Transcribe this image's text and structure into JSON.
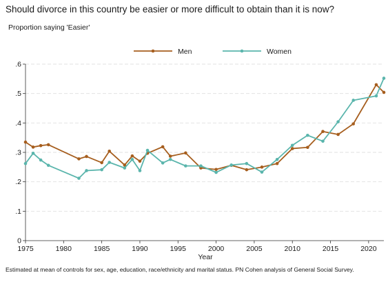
{
  "chart_data": {
    "type": "line",
    "title": "Should divorce in this country be easier or more difficult to obtain than it is now?",
    "subtitle": "Proportion saying 'Easier'",
    "xlabel": "Year",
    "ylabel": "",
    "xlim": [
      1975,
      2022
    ],
    "ylim": [
      0,
      0.6
    ],
    "x_ticks": [
      1975,
      1980,
      1985,
      1990,
      1995,
      2000,
      2005,
      2010,
      2015,
      2020
    ],
    "x_tick_labels": [
      "1975",
      "1980",
      "1985",
      "1990",
      "1995",
      "2000",
      "2005",
      "2010",
      "2015",
      "2020"
    ],
    "y_ticks": [
      0,
      0.1,
      0.2,
      0.3,
      0.4,
      0.5,
      0.6
    ],
    "y_tick_labels": [
      "0",
      ".1",
      ".2",
      ".3",
      ".4",
      ".5",
      ".6"
    ],
    "grid": true,
    "legend_position": "top-center",
    "note": "Estimated at mean of controls for sex, age, education, race/ethnicity and marital status. PN Cohen analysis of General Social Survey.",
    "series": [
      {
        "name": "Men",
        "color": "#a65e1e",
        "points": [
          [
            1975,
            0.335
          ],
          [
            1976,
            0.318
          ],
          [
            1977,
            0.323
          ],
          [
            1978,
            0.326
          ],
          [
            1982,
            0.278
          ],
          [
            1983,
            0.286
          ],
          [
            1985,
            0.265
          ],
          [
            1986,
            0.304
          ],
          [
            1988,
            0.257
          ],
          [
            1989,
            0.288
          ],
          [
            1990,
            0.27
          ],
          [
            1991,
            0.297
          ],
          [
            1993,
            0.319
          ],
          [
            1994,
            0.287
          ],
          [
            1996,
            0.298
          ],
          [
            1998,
            0.247
          ],
          [
            2000,
            0.242
          ],
          [
            2002,
            0.256
          ],
          [
            2004,
            0.241
          ],
          [
            2006,
            0.25
          ],
          [
            2008,
            0.262
          ],
          [
            2010,
            0.313
          ],
          [
            2012,
            0.317
          ],
          [
            2014,
            0.371
          ],
          [
            2016,
            0.361
          ],
          [
            2018,
            0.397
          ],
          [
            2021,
            0.53
          ],
          [
            2022,
            0.504
          ]
        ]
      },
      {
        "name": "Women",
        "color": "#5ab5ac",
        "points": [
          [
            1975,
            0.262
          ],
          [
            1976,
            0.297
          ],
          [
            1977,
            0.274
          ],
          [
            1978,
            0.256
          ],
          [
            1982,
            0.212
          ],
          [
            1983,
            0.238
          ],
          [
            1985,
            0.241
          ],
          [
            1986,
            0.266
          ],
          [
            1988,
            0.247
          ],
          [
            1989,
            0.276
          ],
          [
            1990,
            0.238
          ],
          [
            1991,
            0.307
          ],
          [
            1993,
            0.264
          ],
          [
            1994,
            0.276
          ],
          [
            1996,
            0.254
          ],
          [
            1998,
            0.254
          ],
          [
            2000,
            0.232
          ],
          [
            2002,
            0.257
          ],
          [
            2004,
            0.262
          ],
          [
            2006,
            0.233
          ],
          [
            2008,
            0.276
          ],
          [
            2010,
            0.324
          ],
          [
            2012,
            0.358
          ],
          [
            2014,
            0.338
          ],
          [
            2016,
            0.404
          ],
          [
            2018,
            0.477
          ],
          [
            2021,
            0.492
          ],
          [
            2022,
            0.552
          ]
        ]
      }
    ]
  }
}
